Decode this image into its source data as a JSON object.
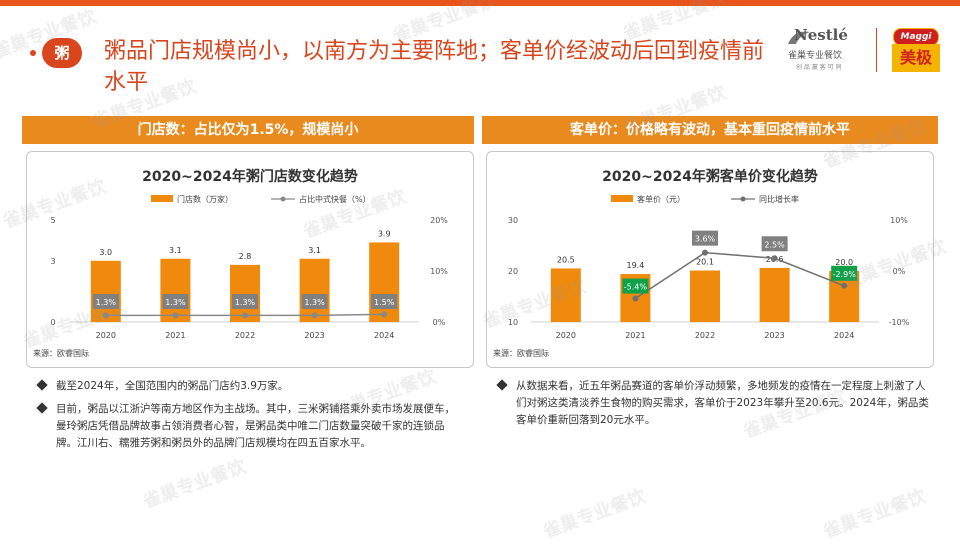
{
  "badge": "粥",
  "title": "粥品门店规模尚小，以南方为主要阵地；客单价经波动后回到疫情前水平",
  "logos": {
    "nestle": "Nestlé",
    "nestle_cn": "雀巢专业餐饮",
    "nestle_sub": "创 品 赢 客 可 同",
    "maggi_oval": "Maggi",
    "maggi_text": "美极"
  },
  "watermark": "雀巢专业餐饮",
  "panels": {
    "left": {
      "header": "门店数：占比仅为1.5%，规模尚小",
      "source": "来源：欧睿国际"
    },
    "right": {
      "header": "客单价：价格略有波动，基本重回疫情前水平",
      "source": "来源：欧睿国际"
    }
  },
  "chart_data": [
    {
      "type": "bar",
      "title": "2020~2024年粥门店数变化趋势",
      "categories": [
        "2020",
        "2021",
        "2022",
        "2023",
        "2024"
      ],
      "series": [
        {
          "name": "门店数（万家）",
          "kind": "bar",
          "values": [
            3.0,
            3.1,
            2.8,
            3.1,
            3.9
          ],
          "labels": [
            "3.0",
            "3.1",
            "2.8",
            "3.1",
            "3.9"
          ],
          "color": "#ef8a0d"
        },
        {
          "name": "占比中式快餐（%）",
          "kind": "line",
          "axis": "right",
          "values": [
            1.3,
            1.3,
            1.3,
            1.3,
            1.5
          ],
          "labels": [
            "1.3%",
            "1.3%",
            "1.3%",
            "1.3%",
            "1.5%"
          ],
          "color": "#888888"
        }
      ],
      "y_left": {
        "min": 0,
        "max": 5,
        "ticks": [
          "0",
          "3",
          "5"
        ],
        "tick_values": [
          0,
          3,
          5
        ]
      },
      "y_right": {
        "min": 0,
        "max": 20,
        "ticks": [
          "0%",
          "10%",
          "20%"
        ],
        "tick_values": [
          0,
          10,
          20
        ]
      }
    },
    {
      "type": "bar",
      "title": "2020~2024年粥客单价变化趋势",
      "categories": [
        "2020",
        "2021",
        "2022",
        "2023",
        "2024"
      ],
      "series": [
        {
          "name": "客单价（元）",
          "kind": "bar",
          "values": [
            20.5,
            19.4,
            20.1,
            20.6,
            20.0
          ],
          "labels": [
            "20.5",
            "19.4",
            "20.1",
            "20.6",
            "20.0"
          ],
          "color": "#ef8a0d"
        },
        {
          "name": "同比增长率",
          "kind": "line",
          "axis": "right",
          "values": [
            null,
            -5.4,
            3.6,
            2.5,
            -2.9
          ],
          "labels": [
            "",
            "-5.4%",
            "3.6%",
            "2.5%",
            "-2.9%"
          ],
          "color": "#707070",
          "neg_color": "#0fa04a"
        }
      ],
      "y_left": {
        "min": 10,
        "max": 30,
        "ticks": [
          "10",
          "20",
          "30"
        ],
        "tick_values": [
          10,
          20,
          30
        ]
      },
      "y_right": {
        "min": -10,
        "max": 10,
        "ticks": [
          "-10%",
          "0%",
          "10%"
        ],
        "tick_values": [
          -10,
          0,
          10
        ]
      }
    }
  ],
  "bullets_left": [
    "截至2024年，全国范围内的粥品门店约3.9万家。",
    "目前，粥品以江浙沪等南方地区作为主战场。其中，三米粥铺搭乘外卖市场发展便车，曼玲粥店凭借品牌故事占领消费者心智，是粥品类中唯二门店数量突破千家的连锁品牌。江川右、糯雅芳粥和粥员外的品牌门店规模均在四五百家水平。"
  ],
  "bullets_right": [
    "从数据来看，近五年粥品赛道的客单价浮动频繁，多地频发的疫情在一定程度上刺激了人们对粥这类清淡养生食物的购买需求，客单价于2023年攀升至20.6元。2024年，粥品类客单价重新回落到20元水平。"
  ]
}
